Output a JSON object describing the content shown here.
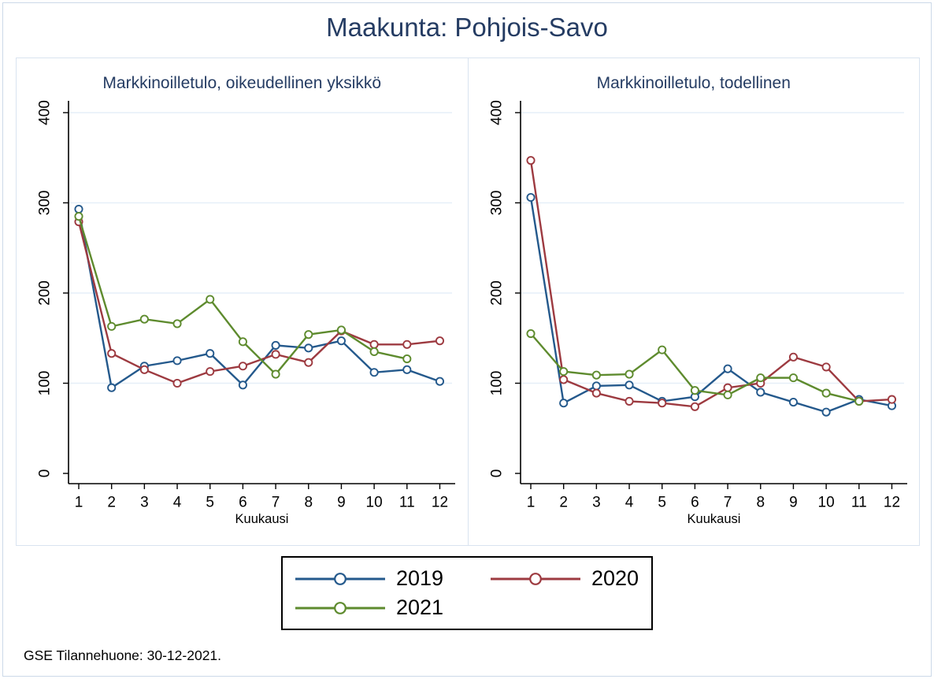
{
  "title": "Maakunta: Pohjois-Savo",
  "footer": "GSE Tilannehuone: 30-12-2021.",
  "colors": {
    "background": "#ffffff",
    "figure_border": "#ccd9e8",
    "panel_border": "#d9e3f0",
    "gridline": "#e6eff8",
    "axis": "#000000",
    "title_text": "#253c63",
    "legend_border": "#000000",
    "series_2019": "#24598c",
    "series_2020": "#9d3a40",
    "series_2021": "#5e8b2e"
  },
  "legend": {
    "position": "bottom-center",
    "items": [
      {
        "label": "2019",
        "color": "#24598c"
      },
      {
        "label": "2020",
        "color": "#9d3a40"
      },
      {
        "label": "2021",
        "color": "#5e8b2e"
      }
    ]
  },
  "chart_data": [
    {
      "type": "line",
      "title": "Markkinoilletulo, oikeudellinen yksikkö",
      "xlabel": "Kuukausi",
      "ylabel": "",
      "x": [
        1,
        2,
        3,
        4,
        5,
        6,
        7,
        8,
        9,
        10,
        11,
        12
      ],
      "ylim": [
        0,
        400
      ],
      "yticks": [
        0,
        100,
        200,
        300,
        400
      ],
      "grid": "horizontal",
      "marker": "open-circle",
      "series": [
        {
          "name": "2019",
          "color": "#24598c",
          "values": [
            293,
            95,
            119,
            125,
            133,
            98,
            142,
            139,
            147,
            112,
            115,
            102
          ]
        },
        {
          "name": "2020",
          "color": "#9d3a40",
          "values": [
            279,
            133,
            115,
            100,
            113,
            119,
            132,
            123,
            158,
            143,
            143,
            147
          ]
        },
        {
          "name": "2021",
          "color": "#5e8b2e",
          "values": [
            285,
            163,
            171,
            166,
            193,
            146,
            110,
            154,
            159,
            135,
            127,
            null
          ]
        }
      ]
    },
    {
      "type": "line",
      "title": "Markkinoilletulo, todellinen",
      "xlabel": "Kuukausi",
      "ylabel": "",
      "x": [
        1,
        2,
        3,
        4,
        5,
        6,
        7,
        8,
        9,
        10,
        11,
        12
      ],
      "ylim": [
        0,
        400
      ],
      "yticks": [
        0,
        100,
        200,
        300,
        400
      ],
      "grid": "horizontal",
      "marker": "open-circle",
      "series": [
        {
          "name": "2019",
          "color": "#24598c",
          "values": [
            306,
            78,
            97,
            98,
            80,
            85,
            116,
            90,
            79,
            68,
            82,
            75
          ]
        },
        {
          "name": "2020",
          "color": "#9d3a40",
          "values": [
            347,
            104,
            89,
            80,
            78,
            74,
            95,
            100,
            129,
            118,
            80,
            82
          ]
        },
        {
          "name": "2021",
          "color": "#5e8b2e",
          "values": [
            155,
            113,
            109,
            110,
            137,
            92,
            87,
            106,
            106,
            89,
            80,
            null
          ]
        }
      ]
    }
  ]
}
